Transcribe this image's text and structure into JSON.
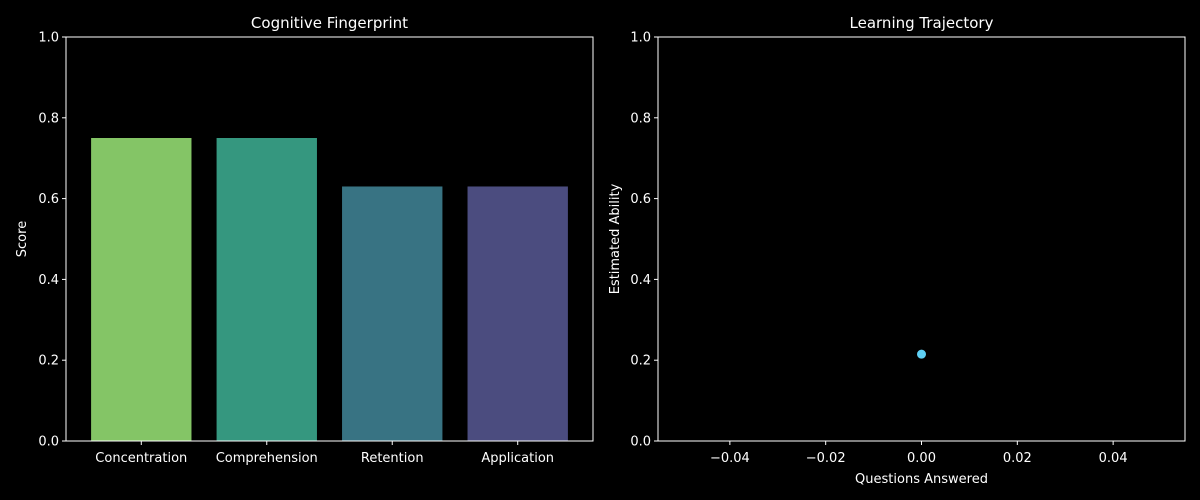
{
  "theme": {
    "background": "#000000",
    "axis_color": "#ffffff",
    "text_color": "#ffffff"
  },
  "chart_data": [
    {
      "type": "bar",
      "title": "Cognitive Fingerprint",
      "xlabel": "",
      "ylabel": "Score",
      "categories": [
        "Concentration",
        "Comprehension",
        "Retention",
        "Application"
      ],
      "values": [
        0.75,
        0.75,
        0.63,
        0.63
      ],
      "colors": [
        "#84c566",
        "#35977f",
        "#387383",
        "#4b4c7f"
      ],
      "ylim": [
        0,
        1
      ],
      "yticks": [
        0.0,
        0.2,
        0.4,
        0.6,
        0.8,
        1.0
      ],
      "ytick_labels": [
        "0.0",
        "0.2",
        "0.4",
        "0.6",
        "0.8",
        "1.0"
      ],
      "grid": false,
      "legend": "none"
    },
    {
      "type": "scatter",
      "title": "Learning Trajectory",
      "xlabel": "Questions Answered",
      "ylabel": "Estimated Ability",
      "points": [
        {
          "x": 0,
          "y": 0.215
        }
      ],
      "color": "#5ed0f5",
      "xlim": [
        -0.055,
        0.055
      ],
      "ylim": [
        0,
        1
      ],
      "xticks": [
        -0.04,
        -0.02,
        0.0,
        0.02,
        0.04
      ],
      "xtick_labels": [
        "−0.04",
        "−0.02",
        "0.00",
        "0.02",
        "0.04"
      ],
      "yticks": [
        0.0,
        0.2,
        0.4,
        0.6,
        0.8,
        1.0
      ],
      "ytick_labels": [
        "0.0",
        "0.2",
        "0.4",
        "0.6",
        "0.8",
        "1.0"
      ],
      "grid": false,
      "legend": "none"
    }
  ]
}
